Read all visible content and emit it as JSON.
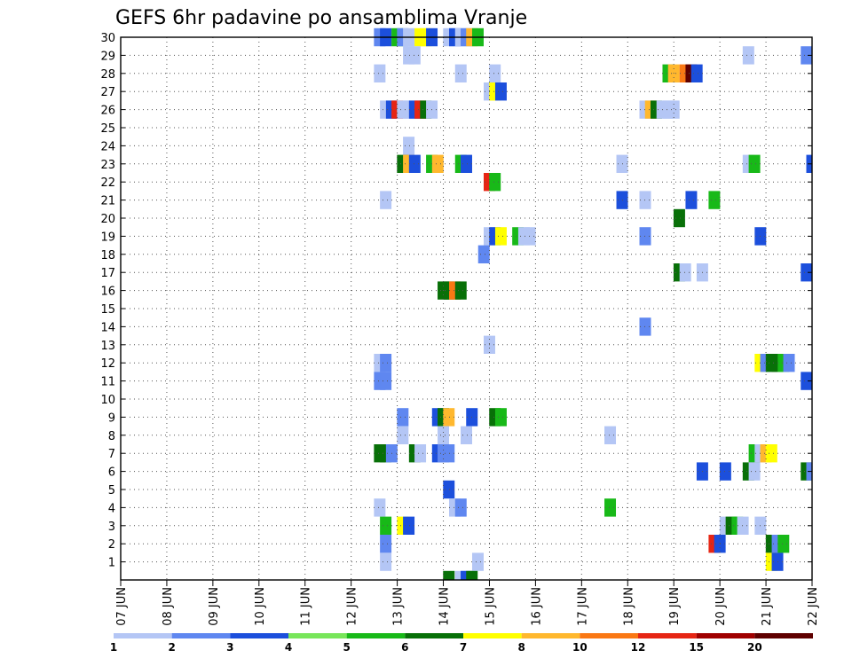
{
  "chart_data": {
    "type": "heatmap",
    "title": "GEFS 6hr padavine po ansamblima Vranje",
    "xlabel": "",
    "ylabel": "",
    "x_ticks": [
      "07 JUN",
      "08 JUN",
      "09 JUN",
      "10 JUN",
      "11 JUN",
      "12 JUN",
      "13 JUN",
      "14 JUN",
      "15 JUN",
      "16 JUN",
      "17 JUN",
      "18 JUN",
      "19 JUN",
      "20 JUN",
      "21 JUN",
      "22 JUN"
    ],
    "y_ticks": [
      "1",
      "2",
      "3",
      "4",
      "5",
      "6",
      "7",
      "8",
      "9",
      "10",
      "11",
      "12",
      "13",
      "14",
      "15",
      "16",
      "17",
      "18",
      "19",
      "20",
      "21",
      "22",
      "23",
      "24",
      "25",
      "26",
      "27",
      "28",
      "29",
      "30"
    ],
    "y_range": [
      0,
      30
    ],
    "x_range": [
      0,
      15
    ],
    "grid": true,
    "colorbar": {
      "labels": [
        "1",
        "2",
        "3",
        "4",
        "5",
        "6",
        "7",
        "8",
        "10",
        "12",
        "15",
        "20"
      ],
      "colors": [
        "#b4c6f5",
        "#5f87f0",
        "#1c4fdc",
        "#78e65a",
        "#18b918",
        "#087008",
        "#ffff00",
        "#ffb82e",
        "#fa7814",
        "#e62514",
        "#a00000",
        "#5f0000"
      ]
    },
    "cells": [
      [
        30,
        5.62,
        2
      ],
      [
        30,
        5.75,
        3
      ],
      [
        30,
        6.0,
        5
      ],
      [
        30,
        6.12,
        2
      ],
      [
        30,
        6.25,
        1
      ],
      [
        30,
        6.5,
        7
      ],
      [
        30,
        6.62,
        7
      ],
      [
        30,
        6.75,
        3
      ],
      [
        30,
        7.12,
        9
      ],
      [
        30,
        7.25,
        3
      ],
      [
        30,
        7.38,
        1
      ],
      [
        30,
        7.5,
        2
      ],
      [
        30,
        7.62,
        8
      ],
      [
        30,
        7.75,
        5
      ],
      [
        29,
        6.25,
        1
      ],
      [
        29,
        6.38,
        1
      ],
      [
        29,
        13.62,
        1
      ],
      [
        29,
        14.88,
        2
      ],
      [
        28,
        5.62,
        1
      ],
      [
        28,
        7.38,
        1
      ],
      [
        28,
        8.12,
        1
      ],
      [
        28,
        11.88,
        5
      ],
      [
        28,
        12.0,
        8
      ],
      [
        28,
        12.25,
        10
      ],
      [
        28,
        12.38,
        20
      ],
      [
        28,
        12.5,
        3
      ],
      [
        27,
        8.0,
        1
      ],
      [
        27,
        8.12,
        7
      ],
      [
        27,
        8.25,
        3
      ],
      [
        26,
        5.75,
        1
      ],
      [
        26,
        5.88,
        3
      ],
      [
        26,
        6.0,
        12
      ],
      [
        26,
        6.12,
        1
      ],
      [
        26,
        6.25,
        1
      ],
      [
        26,
        6.38,
        3
      ],
      [
        26,
        6.5,
        12
      ],
      [
        26,
        6.62,
        6
      ],
      [
        26,
        6.75,
        1
      ],
      [
        26,
        11.38,
        1
      ],
      [
        26,
        11.5,
        8
      ],
      [
        26,
        11.62,
        6
      ],
      [
        26,
        11.75,
        1
      ],
      [
        26,
        11.88,
        1
      ],
      [
        26,
        12.0,
        1
      ],
      [
        24,
        6.25,
        1
      ],
      [
        23,
        6.12,
        6
      ],
      [
        23,
        6.25,
        8
      ],
      [
        23,
        6.38,
        3
      ],
      [
        23,
        6.75,
        5
      ],
      [
        23,
        6.88,
        8
      ],
      [
        23,
        7.38,
        5
      ],
      [
        23,
        7.5,
        3
      ],
      [
        23,
        10.88,
        1
      ],
      [
        23,
        13.62,
        1
      ],
      [
        23,
        13.75,
        5
      ],
      [
        23,
        15.0,
        3
      ],
      [
        22,
        8.0,
        12
      ],
      [
        22,
        8.12,
        5
      ],
      [
        21,
        5.75,
        1
      ],
      [
        21,
        10.88,
        3
      ],
      [
        21,
        11.38,
        1
      ],
      [
        21,
        12.38,
        3
      ],
      [
        21,
        12.88,
        5
      ],
      [
        20,
        12.12,
        6
      ],
      [
        19,
        8.0,
        1
      ],
      [
        19,
        8.12,
        3
      ],
      [
        19,
        8.25,
        7
      ],
      [
        19,
        8.62,
        5
      ],
      [
        19,
        8.75,
        1
      ],
      [
        19,
        8.88,
        1
      ],
      [
        19,
        11.38,
        2
      ],
      [
        19,
        13.88,
        3
      ],
      [
        18,
        7.88,
        2
      ],
      [
        17,
        12.12,
        6
      ],
      [
        17,
        12.25,
        1
      ],
      [
        17,
        12.62,
        1
      ],
      [
        17,
        14.88,
        3
      ],
      [
        16,
        7.0,
        6
      ],
      [
        16,
        7.12,
        6
      ],
      [
        16,
        7.25,
        10
      ],
      [
        16,
        7.38,
        6
      ],
      [
        14,
        11.38,
        2
      ],
      [
        13,
        8.0,
        1
      ],
      [
        12,
        5.62,
        1
      ],
      [
        12,
        5.75,
        2
      ],
      [
        12,
        13.88,
        7
      ],
      [
        12,
        14.0,
        2
      ],
      [
        12,
        14.12,
        6
      ],
      [
        12,
        14.25,
        6
      ],
      [
        12,
        14.38,
        5
      ],
      [
        12,
        14.5,
        2
      ],
      [
        11,
        5.62,
        2
      ],
      [
        11,
        5.75,
        2
      ],
      [
        11,
        14.88,
        3
      ],
      [
        9,
        6.12,
        2
      ],
      [
        9,
        6.88,
        3
      ],
      [
        9,
        7.0,
        6
      ],
      [
        9,
        7.12,
        8
      ],
      [
        9,
        7.62,
        3
      ],
      [
        9,
        8.12,
        6
      ],
      [
        9,
        8.25,
        5
      ],
      [
        8,
        6.12,
        1
      ],
      [
        8,
        7.0,
        1
      ],
      [
        8,
        7.5,
        1
      ],
      [
        8,
        10.62,
        1
      ],
      [
        7,
        5.62,
        6
      ],
      [
        7,
        5.75,
        6
      ],
      [
        7,
        5.88,
        2
      ],
      [
        7,
        6.38,
        6
      ],
      [
        7,
        6.5,
        1
      ],
      [
        7,
        6.88,
        3
      ],
      [
        7,
        7.0,
        2
      ],
      [
        7,
        7.12,
        2
      ],
      [
        7,
        13.75,
        5
      ],
      [
        7,
        13.88,
        1
      ],
      [
        7,
        14.0,
        8
      ],
      [
        7,
        14.12,
        7
      ],
      [
        6,
        12.62,
        3
      ],
      [
        6,
        13.12,
        3
      ],
      [
        6,
        13.62,
        6
      ],
      [
        6,
        13.75,
        1
      ],
      [
        6,
        14.88,
        6
      ],
      [
        6,
        15.0,
        2
      ],
      [
        5,
        7.12,
        3
      ],
      [
        4,
        5.62,
        1
      ],
      [
        4,
        7.25,
        1
      ],
      [
        4,
        7.38,
        2
      ],
      [
        4,
        10.62,
        5
      ],
      [
        3,
        5.75,
        5
      ],
      [
        3,
        6.12,
        7
      ],
      [
        3,
        6.25,
        3
      ],
      [
        3,
        13.12,
        1
      ],
      [
        3,
        13.25,
        6
      ],
      [
        3,
        13.38,
        5
      ],
      [
        3,
        13.5,
        1
      ],
      [
        3,
        13.88,
        1
      ],
      [
        2,
        5.75,
        2
      ],
      [
        2,
        12.88,
        12
      ],
      [
        2,
        13.0,
        3
      ],
      [
        2,
        14.12,
        6
      ],
      [
        2,
        14.25,
        2
      ],
      [
        2,
        14.38,
        5
      ],
      [
        1,
        5.75,
        1
      ],
      [
        1,
        7.75,
        1
      ],
      [
        1,
        14.12,
        7
      ],
      [
        1,
        14.25,
        3
      ],
      [
        0,
        7.12,
        6
      ],
      [
        0,
        7.38,
        1
      ],
      [
        0,
        7.5,
        3
      ],
      [
        0,
        7.62,
        6
      ]
    ]
  }
}
